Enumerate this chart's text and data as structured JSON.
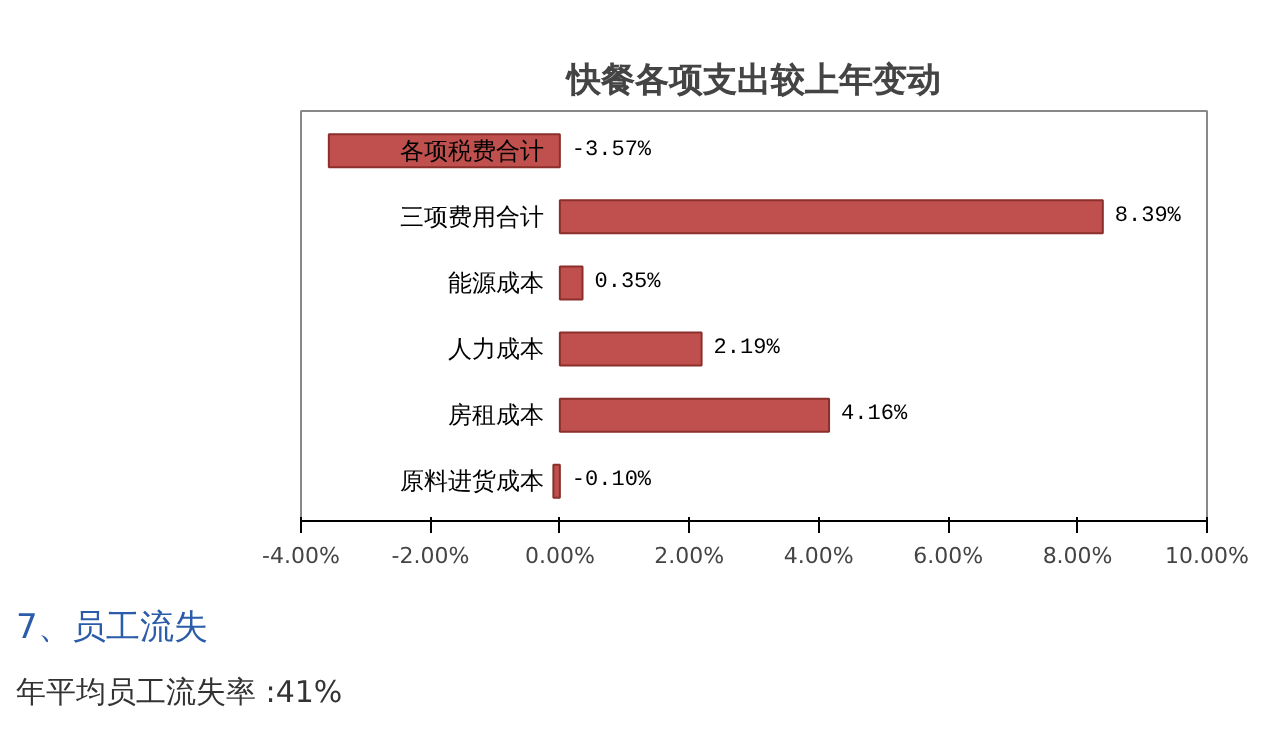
{
  "chart_data": {
    "type": "bar",
    "orientation": "horizontal",
    "title": "快餐各项支出较上年变动",
    "categories": [
      "各项税费合计",
      "三项费用合计",
      "能源成本",
      "人力成本",
      "房租成本",
      "原料进货成本"
    ],
    "values": [
      -3.57,
      8.39,
      0.35,
      2.19,
      4.16,
      -0.1
    ],
    "value_labels": [
      "-3.57%",
      "8.39%",
      "0.35%",
      "2.19%",
      "4.16%",
      "-0.10%"
    ],
    "color": "#c0504d",
    "xlim": [
      -4,
      10
    ],
    "xticks": [
      {
        "value": -4,
        "label": "-4.00%"
      },
      {
        "value": -2,
        "label": "-2.00%"
      },
      {
        "value": 0,
        "label": "0.00%"
      },
      {
        "value": 2,
        "label": "2.00%"
      },
      {
        "value": 4,
        "label": "4.00%"
      },
      {
        "value": 6,
        "label": "6.00%"
      },
      {
        "value": 8,
        "label": "8.00%"
      },
      {
        "value": 10,
        "label": "10.00%"
      }
    ],
    "tick_labels": "x",
    "grid": false,
    "annotations": [
      "7、员工流失",
      "年平均员工流失率 :41%"
    ]
  }
}
